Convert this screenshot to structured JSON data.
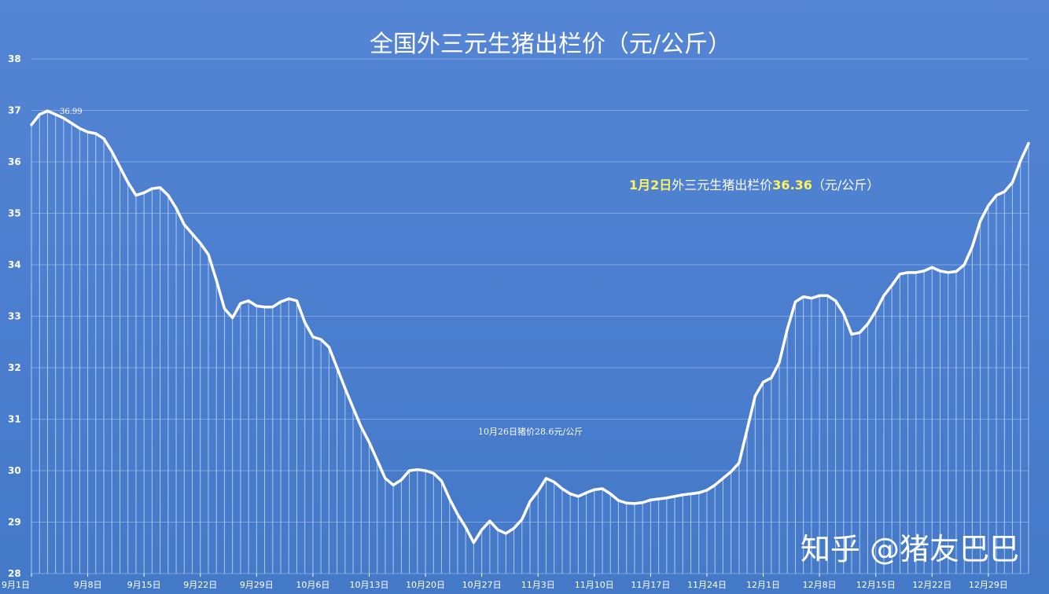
{
  "chart_data": {
    "type": "line",
    "title": "全国外三元生猪出栏价（元/公斤）",
    "ylim": [
      28,
      38
    ],
    "yticks": [
      28,
      29,
      30,
      31,
      32,
      33,
      34,
      35,
      36,
      37,
      38
    ],
    "grid": true,
    "xtick_labels": [
      "9月1日",
      "9月8日",
      "9月15日",
      "9月22日",
      "9月29日",
      "10月6日",
      "10月13日",
      "10月20日",
      "10月27日",
      "11月3日",
      "11月10日",
      "11月17日",
      "11月24日",
      "12月1日",
      "12月8日",
      "12月15日",
      "12月22日",
      "12月29日"
    ],
    "values": [
      36.72,
      36.92,
      36.99,
      36.92,
      36.85,
      36.75,
      36.65,
      36.58,
      36.55,
      36.45,
      36.2,
      35.9,
      35.6,
      35.35,
      35.4,
      35.48,
      35.5,
      35.35,
      35.1,
      34.78,
      34.6,
      34.42,
      34.2,
      33.7,
      33.15,
      32.97,
      33.25,
      33.3,
      33.2,
      33.18,
      33.18,
      33.28,
      33.34,
      33.3,
      32.88,
      32.6,
      32.55,
      32.4,
      32.0,
      31.6,
      31.22,
      30.85,
      30.55,
      30.2,
      29.85,
      29.72,
      29.82,
      30.0,
      30.02,
      30.0,
      29.95,
      29.8,
      29.45,
      29.15,
      28.9,
      28.6,
      28.85,
      29.02,
      28.85,
      28.78,
      28.88,
      29.05,
      29.4,
      29.6,
      29.85,
      29.78,
      29.65,
      29.55,
      29.5,
      29.57,
      29.63,
      29.65,
      29.55,
      29.42,
      29.37,
      29.36,
      29.38,
      29.43,
      29.45,
      29.47,
      29.5,
      29.53,
      29.55,
      29.57,
      29.62,
      29.72,
      29.85,
      29.98,
      30.15,
      30.8,
      31.45,
      31.72,
      31.8,
      32.1,
      32.75,
      33.28,
      33.38,
      33.35,
      33.4,
      33.4,
      33.3,
      33.05,
      32.65,
      32.68,
      32.85,
      33.1,
      33.4,
      33.6,
      33.82,
      33.85,
      33.85,
      33.88,
      33.95,
      33.88,
      33.85,
      33.87,
      34.0,
      34.35,
      34.85,
      35.15,
      35.35,
      35.42,
      35.6,
      36.02,
      36.36
    ],
    "peak_label": "36.99",
    "annotations": {
      "trough": "10月26日猪价28.6元/公斤",
      "latest_date": "1月2日",
      "latest_text": "外三元生猪出栏价",
      "latest_value": "36.36",
      "latest_unit": "（元/公斤）"
    },
    "line_color": "#ffffff",
    "background_color": "#4f80cf",
    "highlight_color": "#fff35c"
  },
  "watermark": "知乎 @猪友巴巴"
}
